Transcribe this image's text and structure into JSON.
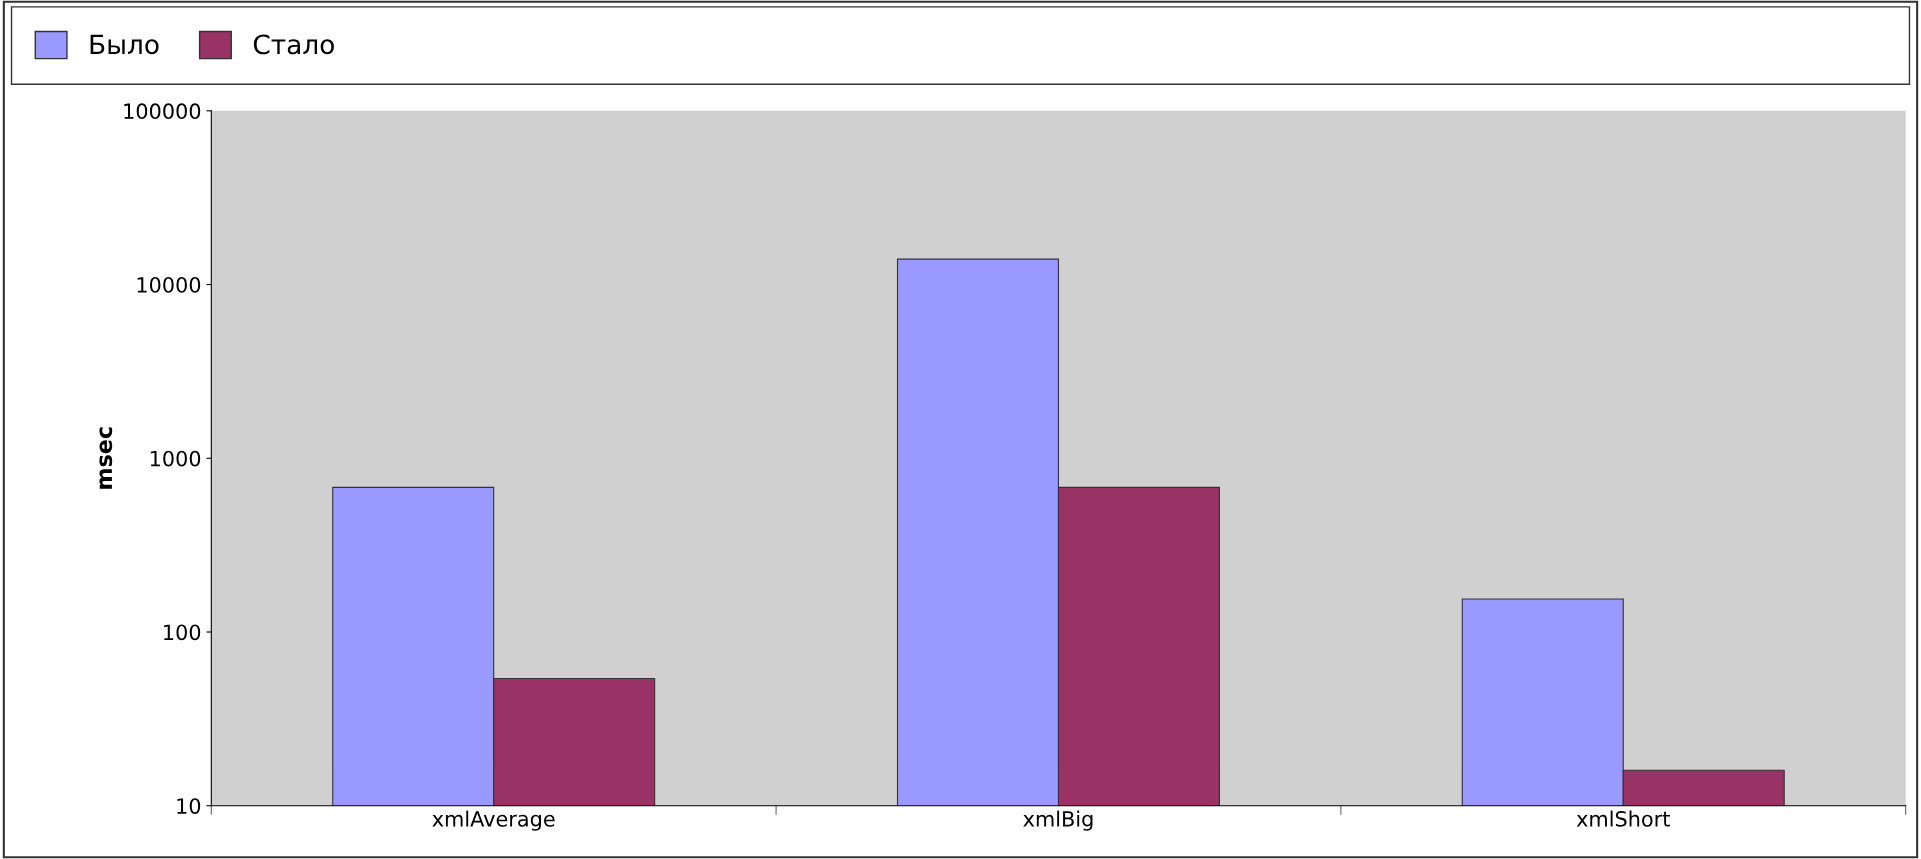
{
  "chart_data": {
    "type": "bar",
    "ylabel": "msec",
    "log": true,
    "categories": [
      "xmlAverage",
      "xmlBig",
      "xmlShort"
    ],
    "series": [
      {
        "name": "Было",
        "color": "#9999ff",
        "values": [
          680,
          14000,
          155
        ]
      },
      {
        "name": "Стало",
        "color": "#993366",
        "values": [
          54,
          680,
          16
        ]
      }
    ],
    "ylim": [
      10,
      100000
    ],
    "yticks": [
      10,
      100,
      1000,
      10000,
      100000
    ],
    "grid": false,
    "legend": "top"
  }
}
